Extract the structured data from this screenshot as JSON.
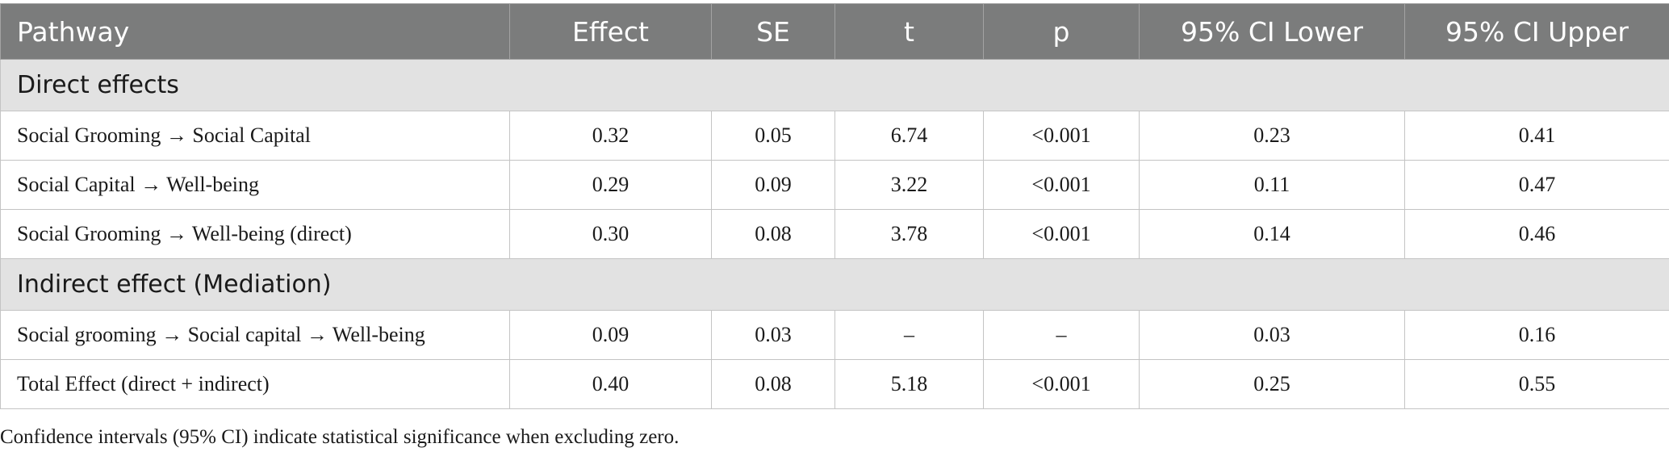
{
  "table": {
    "headers": [
      "Pathway",
      "Effect",
      "SE",
      "t",
      "p",
      "95% CI Lower",
      "95% CI Upper"
    ],
    "sections": [
      {
        "title": "Direct effects",
        "rows": [
          [
            "Social Grooming → Social Capital",
            "0.32",
            "0.05",
            "6.74",
            "<0.001",
            "0.23",
            "0.41"
          ],
          [
            "Social Capital → Well-being",
            "0.29",
            "0.09",
            "3.22",
            "<0.001",
            "0.11",
            "0.47"
          ],
          [
            "Social Grooming → Well-being (direct)",
            "0.30",
            "0.08",
            "3.78",
            "<0.001",
            "0.14",
            "0.46"
          ]
        ]
      },
      {
        "title": "Indirect effect (Mediation)",
        "rows": [
          [
            "Social grooming → Social capital → Well-being",
            "0.09",
            "0.03",
            "–",
            "–",
            "0.03",
            "0.16"
          ],
          [
            "Total Effect (direct + indirect)",
            "0.40",
            "0.08",
            "5.18",
            "<0.001",
            "0.25",
            "0.55"
          ]
        ]
      }
    ]
  },
  "footnote": "Confidence intervals (95% CI) indicate statistical significance when excluding zero.",
  "colors": {
    "header_bg": "#7b7c7c",
    "header_text": "#ffffff",
    "section_bg": "#e2e2e2",
    "border": "#c4c4c4"
  }
}
